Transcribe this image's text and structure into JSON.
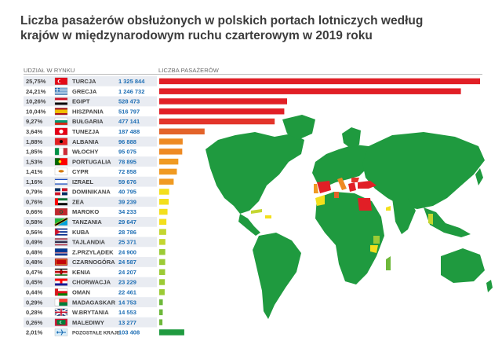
{
  "title": "Liczba pasażerów obsłużonych w polskich portach lotniczych według krajów w międzynarodowym ruchu czarterowym w 2019 roku",
  "headers": {
    "share": "UDZIAŁ W RYNKU",
    "passengers": "LICZBA PASAŻERÓW"
  },
  "colors": {
    "top": "#e11f26",
    "mid": "#e3632a",
    "orange": "#f09a21",
    "yellow": "#f3df1c",
    "lime": "#c4d630",
    "green": "#6db83a",
    "other": "#1f9a3f",
    "map_base": "#1f9a3f",
    "ocean": "#ffffff"
  },
  "chart_data": {
    "type": "bar",
    "orientation": "horizontal",
    "title": "Liczba pasażerów obsłużonych w polskich portach lotniczych według krajów w międzynarodowym ruchu czarterowym w 2019 roku",
    "xlabel": "LICZBA PASAŻERÓW",
    "ylabel": "",
    "categories": [
      "TURCJA",
      "GRECJA",
      "EGIPT",
      "HISZPANIA",
      "BUŁGARIA",
      "TUNEZJA",
      "ALBANIA",
      "WŁOCHY",
      "PORTUGALIA",
      "CYPR",
      "IZRAEL",
      "DOMINIKANA",
      "ZEA",
      "MAROKO",
      "TANZANIA",
      "KUBA",
      "TAJLANDIA",
      "Z.PRZYLĄDEK",
      "CZARNOGÓRA",
      "KENIA",
      "CHORWACJA",
      "OMAN",
      "MADAGASKAR",
      "W.BRYTANIA",
      "MALEDIWY",
      "POZOSTAŁE KRAJE"
    ],
    "values": [
      1325844,
      1246732,
      528473,
      516797,
      477141,
      187488,
      96888,
      95075,
      78895,
      72858,
      59676,
      40795,
      39239,
      34233,
      29647,
      28786,
      25371,
      24900,
      24587,
      24207,
      23229,
      22461,
      14753,
      14553,
      13277,
      103408
    ],
    "value_labels": [
      "1 325 844",
      "1 246 732",
      "528 473",
      "516 797",
      "477 141",
      "187 488",
      "96 888",
      "95 075",
      "78 895",
      "72 858",
      "59 676",
      "40 795",
      "39 239",
      "34 233",
      "29 647",
      "28 786",
      "25 371",
      "24 900",
      "24 587",
      "24 207",
      "23 229",
      "22 461",
      "14 753",
      "14 553",
      "13 277",
      "103 408"
    ],
    "shares": [
      "25,75%",
      "24,21%",
      "10,26%",
      "10,04%",
      "9,27%",
      "3,64%",
      "1,88%",
      "1,85%",
      "1,53%",
      "1,41%",
      "1,16%",
      "0,79%",
      "0,76%",
      "0,66%",
      "0,58%",
      "0,56%",
      "0,49%",
      "0,48%",
      "0,48%",
      "0,47%",
      "0,45%",
      "0,44%",
      "0,29%",
      "0,28%",
      "0,26%",
      "2,01%"
    ],
    "bar_colors": [
      "#e11f26",
      "#e11f26",
      "#e11f26",
      "#e11f26",
      "#e3342a",
      "#e3632a",
      "#ee8a22",
      "#ee8a22",
      "#f09a21",
      "#f09a21",
      "#f09a21",
      "#f3df1c",
      "#f3df1c",
      "#f3df1c",
      "#f3df1c",
      "#c4d630",
      "#c4d630",
      "#9ccb35",
      "#9ccb35",
      "#9ccb35",
      "#9ccb35",
      "#9ccb35",
      "#6db83a",
      "#6db83a",
      "#6db83a",
      "#1f9a3f"
    ],
    "flags": [
      "turkey",
      "greece",
      "egypt",
      "spain",
      "bulgaria",
      "tunisia",
      "albania",
      "italy",
      "portugal",
      "cyprus",
      "israel",
      "dominican",
      "uae",
      "morocco",
      "tanzania",
      "cuba",
      "thailand",
      "cape-verde",
      "montenegro",
      "kenya",
      "croatia",
      "oman",
      "madagascar",
      "uk",
      "maldives",
      "other-plane"
    ],
    "xlim": [
      0,
      1325844
    ]
  }
}
